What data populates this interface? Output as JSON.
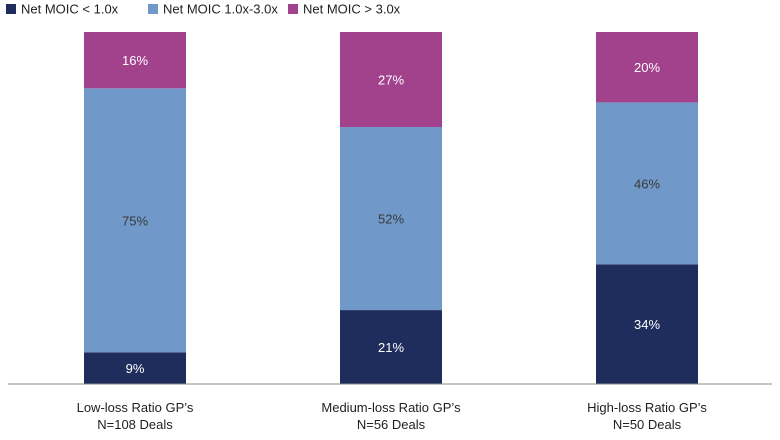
{
  "chart_data": {
    "type": "bar",
    "stacked": true,
    "categories": [
      [
        "Low-loss Ratio GP’s",
        "N=108 Deals"
      ],
      [
        "Medium-loss Ratio GP’s",
        "N=56 Deals"
      ],
      [
        "High-loss Ratio GP’s",
        "N=50 Deals"
      ]
    ],
    "series": [
      {
        "name": "Net MOIC < 1.0x",
        "values": [
          9,
          21,
          34
        ],
        "color": "#1f2d5c",
        "label_color": "#ffffff"
      },
      {
        "name": "Net MOIC 1.0x-3.0x",
        "values": [
          75,
          52,
          46
        ],
        "color": "#7098c8",
        "label_color": "#3a3a3a"
      },
      {
        "name": "Net MOIC > 3.0x",
        "values": [
          16,
          27,
          20
        ],
        "color": "#a2418c",
        "label_color": "#ffffff"
      }
    ],
    "value_suffix": "%",
    "ylim": [
      0,
      100
    ],
    "legend_position": "top-left",
    "grid": false
  }
}
